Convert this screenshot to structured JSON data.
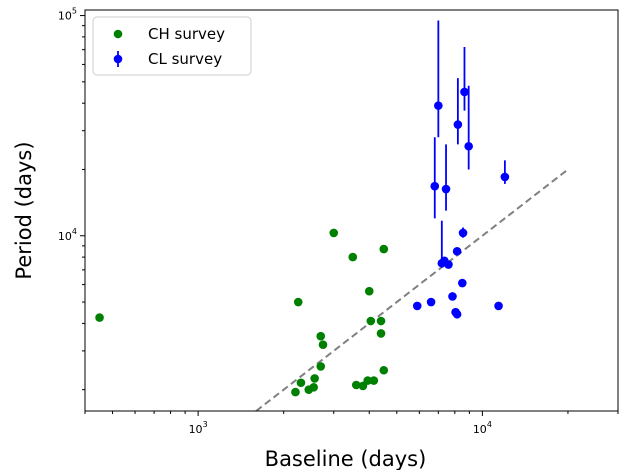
{
  "chart_data": {
    "type": "scatter",
    "title": "",
    "xlabel": "Baseline (days)",
    "ylabel": "Period (days)",
    "xscale": "log",
    "yscale": "log",
    "xlim": [
      400,
      30000
    ],
    "ylim": [
      1600,
      106000
    ],
    "xticks": [
      {
        "value": 1000,
        "label": "10^3"
      },
      {
        "value": 10000,
        "label": "10^4"
      }
    ],
    "yticks": [
      {
        "value": 10000,
        "label": "10^4"
      },
      {
        "value": 100000,
        "label": "10^5"
      }
    ],
    "grid": false,
    "legend": {
      "position": "top-left",
      "entries": [
        "CH survey",
        "CL survey"
      ]
    },
    "series": [
      {
        "name": "CH survey",
        "color": "#008000",
        "marker": "circle",
        "points": [
          [
            450,
            4250
          ],
          [
            2200,
            1950
          ],
          [
            2250,
            5000
          ],
          [
            2300,
            2150
          ],
          [
            2450,
            2000
          ],
          [
            2550,
            2050
          ],
          [
            2570,
            2250
          ],
          [
            2700,
            2550
          ],
          [
            2700,
            3500
          ],
          [
            2750,
            3200
          ],
          [
            3000,
            10300
          ],
          [
            3500,
            8000
          ],
          [
            3600,
            2100
          ],
          [
            3800,
            2080
          ],
          [
            3950,
            2200
          ],
          [
            4000,
            5600
          ],
          [
            4050,
            4100
          ],
          [
            4150,
            2200
          ],
          [
            4400,
            3600
          ],
          [
            4400,
            4100
          ],
          [
            4500,
            8700
          ],
          [
            4500,
            2450
          ]
        ]
      },
      {
        "name": "CL survey",
        "color": "#0000ff",
        "marker": "circle",
        "points": [
          {
            "x": 5900,
            "y": 4800
          },
          {
            "x": 6600,
            "y": 5000
          },
          {
            "x": 6800,
            "y": 16800,
            "yerr": [
              12000,
              28000
            ]
          },
          {
            "x": 7000,
            "y": 39000,
            "yerr": [
              28000,
              95000
            ]
          },
          {
            "x": 7200,
            "y": 7500,
            "yerr": [
              7500,
              11700
            ]
          },
          {
            "x": 7350,
            "y": 7700
          },
          {
            "x": 7450,
            "y": 16300,
            "yerr": [
              13000,
              26000
            ]
          },
          {
            "x": 7600,
            "y": 7400
          },
          {
            "x": 7850,
            "y": 5300
          },
          {
            "x": 8050,
            "y": 4500
          },
          {
            "x": 8150,
            "y": 4400
          },
          {
            "x": 8150,
            "y": 8500
          },
          {
            "x": 8200,
            "y": 32000,
            "yerr": [
              26000,
              52000
            ]
          },
          {
            "x": 8500,
            "y": 6100
          },
          {
            "x": 8550,
            "y": 10300,
            "yerr": [
              9800,
              10900
            ]
          },
          {
            "x": 8650,
            "y": 45000,
            "yerr": [
              37000,
              72000
            ]
          },
          {
            "x": 8950,
            "y": 25500,
            "yerr": [
              20000,
              48000
            ]
          },
          {
            "x": 11400,
            "y": 4800
          },
          {
            "x": 12000,
            "y": 18500,
            "yerr": [
              17200,
              22000
            ]
          }
        ]
      }
    ],
    "reference_line": {
      "style": "dashed",
      "color": "#808080",
      "from": [
        1600,
        1600
      ],
      "to": [
        20000,
        20000
      ]
    }
  }
}
